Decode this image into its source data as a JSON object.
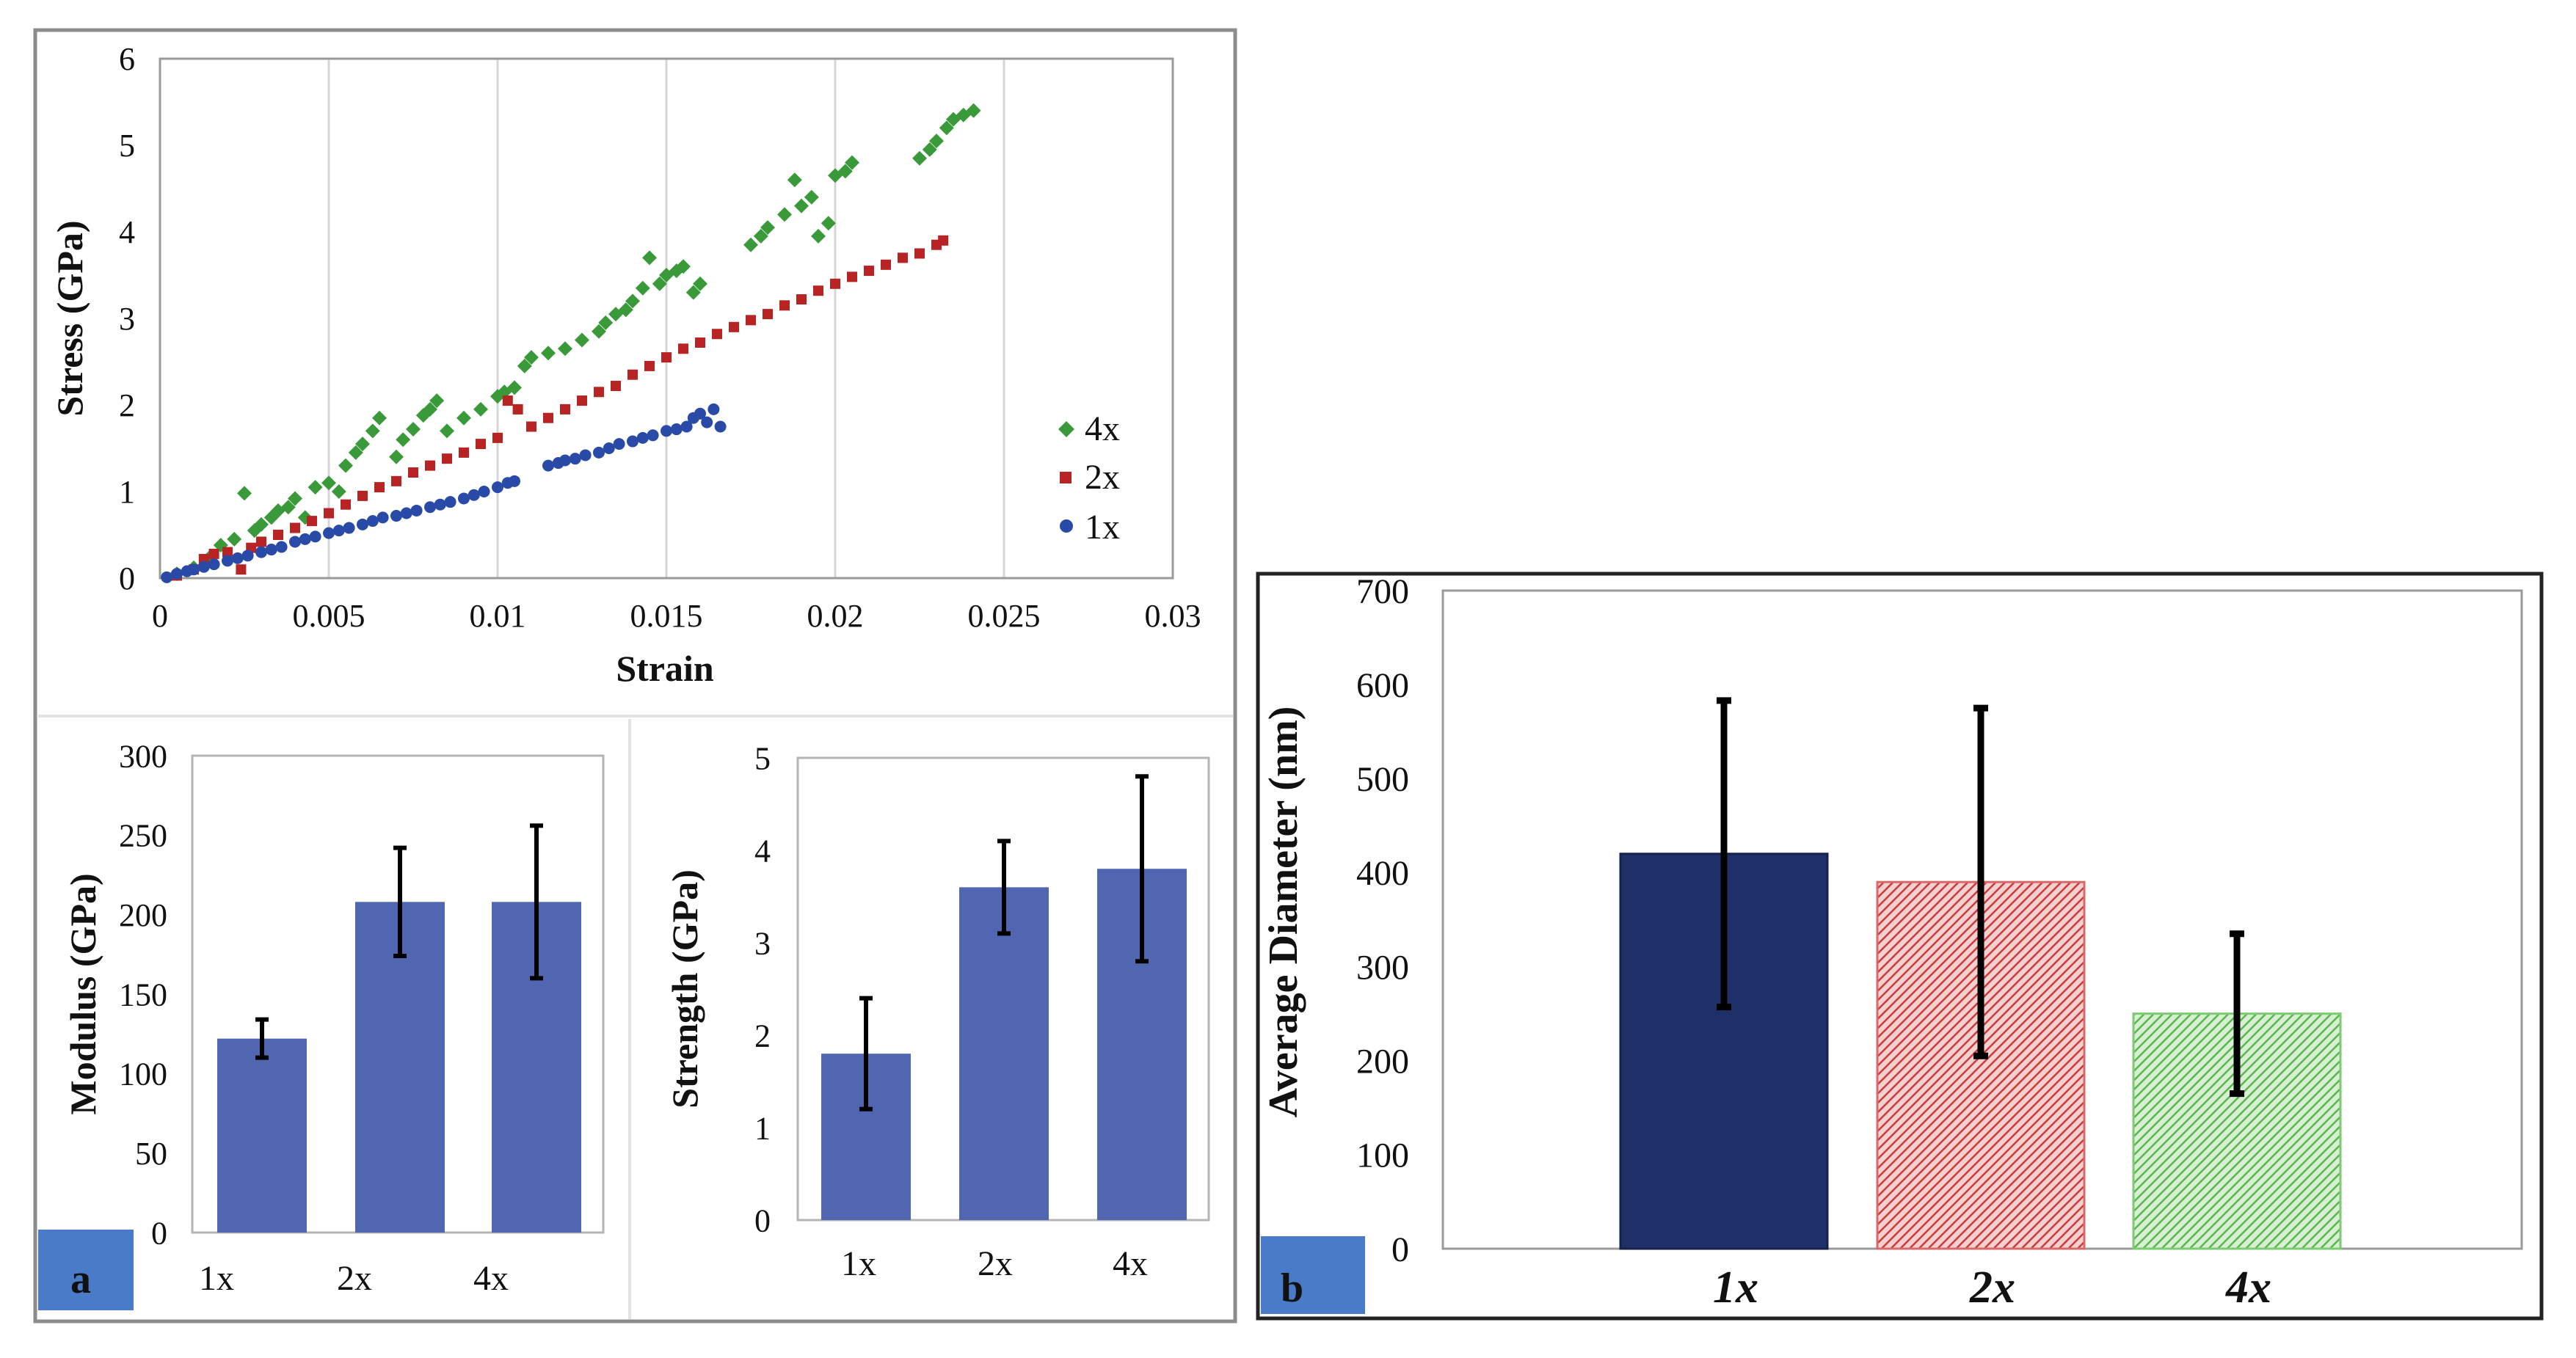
{
  "colors": {
    "green": "#3a9a3a",
    "red": "#b82424",
    "blue": "#2a4aa8",
    "bar_blue": "#5066b0",
    "navy": "#1f3068",
    "hatch_red": "#cc3a3a",
    "hatch_green": "#59b84d",
    "badge": "#4a7bc8",
    "grid": "#d6d6d6"
  },
  "panels": {
    "a": {
      "label": "a"
    },
    "b": {
      "label": "b"
    }
  },
  "chart_data": [
    {
      "id": "stress-strain",
      "type": "scatter",
      "title": "",
      "xlabel": "Strain",
      "ylabel": "Stress (GPa)",
      "xlim": [
        0,
        0.03
      ],
      "ylim": [
        0,
        6
      ],
      "xticks": [
        "0",
        "0.005",
        "0.01",
        "0.015",
        "0.02",
        "0.025",
        "0.03"
      ],
      "yticks": [
        "0",
        "1",
        "2",
        "3",
        "4",
        "5",
        "6"
      ],
      "grid": "vertical",
      "legend": "right",
      "series": [
        {
          "name": "4x",
          "marker": "diamond",
          "color_key": "green",
          "points": [
            [
              0.0005,
              0.05
            ],
            [
              0.001,
              0.12
            ],
            [
              0.0015,
              0.25
            ],
            [
              0.0018,
              0.38
            ],
            [
              0.0022,
              0.45
            ],
            [
              0.0025,
              0.98
            ],
            [
              0.0028,
              0.55
            ],
            [
              0.003,
              0.62
            ],
            [
              0.0033,
              0.7
            ],
            [
              0.0035,
              0.78
            ],
            [
              0.0038,
              0.82
            ],
            [
              0.004,
              0.92
            ],
            [
              0.0043,
              0.7
            ],
            [
              0.0046,
              1.05
            ],
            [
              0.005,
              1.1
            ],
            [
              0.0053,
              1.0
            ],
            [
              0.0055,
              1.3
            ],
            [
              0.0058,
              1.45
            ],
            [
              0.006,
              1.55
            ],
            [
              0.0063,
              1.7
            ],
            [
              0.0065,
              1.85
            ],
            [
              0.007,
              1.4
            ],
            [
              0.0072,
              1.6
            ],
            [
              0.0075,
              1.72
            ],
            [
              0.0078,
              1.88
            ],
            [
              0.008,
              1.95
            ],
            [
              0.0082,
              2.05
            ],
            [
              0.0085,
              1.7
            ],
            [
              0.009,
              1.85
            ],
            [
              0.0095,
              1.95
            ],
            [
              0.01,
              2.1
            ],
            [
              0.0102,
              2.15
            ],
            [
              0.0105,
              2.2
            ],
            [
              0.0108,
              2.45
            ],
            [
              0.011,
              2.55
            ],
            [
              0.0115,
              2.6
            ],
            [
              0.012,
              2.65
            ],
            [
              0.0125,
              2.75
            ],
            [
              0.013,
              2.85
            ],
            [
              0.0132,
              2.95
            ],
            [
              0.0135,
              3.05
            ],
            [
              0.0138,
              3.1
            ],
            [
              0.014,
              3.2
            ],
            [
              0.0143,
              3.35
            ],
            [
              0.0145,
              3.7
            ],
            [
              0.0148,
              3.4
            ],
            [
              0.015,
              3.5
            ],
            [
              0.0153,
              3.55
            ],
            [
              0.0155,
              3.6
            ],
            [
              0.0158,
              3.3
            ],
            [
              0.016,
              3.4
            ],
            [
              0.0175,
              3.85
            ],
            [
              0.0178,
              3.95
            ],
            [
              0.018,
              4.05
            ],
            [
              0.0185,
              4.2
            ],
            [
              0.0188,
              4.6
            ],
            [
              0.019,
              4.3
            ],
            [
              0.0193,
              4.4
            ],
            [
              0.0195,
              3.95
            ],
            [
              0.0198,
              4.1
            ],
            [
              0.02,
              4.65
            ],
            [
              0.0203,
              4.7
            ],
            [
              0.0205,
              4.8
            ],
            [
              0.0225,
              4.85
            ],
            [
              0.0228,
              4.95
            ],
            [
              0.023,
              5.05
            ],
            [
              0.0233,
              5.2
            ],
            [
              0.0235,
              5.3
            ],
            [
              0.0238,
              5.35
            ],
            [
              0.0241,
              5.4
            ]
          ]
        },
        {
          "name": "2x",
          "marker": "square",
          "color_key": "red",
          "points": [
            [
              0.0005,
              0.03
            ],
            [
              0.001,
              0.1
            ],
            [
              0.0013,
              0.22
            ],
            [
              0.0016,
              0.28
            ],
            [
              0.002,
              0.3
            ],
            [
              0.0024,
              0.1
            ],
            [
              0.0027,
              0.35
            ],
            [
              0.003,
              0.42
            ],
            [
              0.0035,
              0.5
            ],
            [
              0.004,
              0.58
            ],
            [
              0.0045,
              0.66
            ],
            [
              0.005,
              0.75
            ],
            [
              0.0055,
              0.85
            ],
            [
              0.006,
              0.95
            ],
            [
              0.0065,
              1.05
            ],
            [
              0.007,
              1.12
            ],
            [
              0.0075,
              1.22
            ],
            [
              0.008,
              1.3
            ],
            [
              0.0085,
              1.38
            ],
            [
              0.009,
              1.45
            ],
            [
              0.0095,
              1.55
            ],
            [
              0.01,
              1.62
            ],
            [
              0.0103,
              2.05
            ],
            [
              0.0106,
              1.95
            ],
            [
              0.011,
              1.75
            ],
            [
              0.0115,
              1.85
            ],
            [
              0.012,
              1.95
            ],
            [
              0.0125,
              2.05
            ],
            [
              0.013,
              2.15
            ],
            [
              0.0135,
              2.22
            ],
            [
              0.014,
              2.35
            ],
            [
              0.0145,
              2.45
            ],
            [
              0.015,
              2.55
            ],
            [
              0.0155,
              2.65
            ],
            [
              0.016,
              2.72
            ],
            [
              0.0165,
              2.82
            ],
            [
              0.017,
              2.9
            ],
            [
              0.0175,
              2.98
            ],
            [
              0.018,
              3.05
            ],
            [
              0.0185,
              3.15
            ],
            [
              0.019,
              3.22
            ],
            [
              0.0195,
              3.32
            ],
            [
              0.02,
              3.4
            ],
            [
              0.0205,
              3.48
            ],
            [
              0.021,
              3.55
            ],
            [
              0.0215,
              3.62
            ],
            [
              0.022,
              3.7
            ],
            [
              0.0225,
              3.75
            ],
            [
              0.023,
              3.85
            ],
            [
              0.0232,
              3.9
            ]
          ]
        },
        {
          "name": "1x",
          "marker": "circle",
          "color_key": "blue",
          "points": [
            [
              0.0002,
              0.01
            ],
            [
              0.0005,
              0.05
            ],
            [
              0.0008,
              0.08
            ],
            [
              0.001,
              0.1
            ],
            [
              0.0013,
              0.13
            ],
            [
              0.0016,
              0.16
            ],
            [
              0.002,
              0.2
            ],
            [
              0.0023,
              0.23
            ],
            [
              0.0026,
              0.26
            ],
            [
              0.003,
              0.3
            ],
            [
              0.0033,
              0.33
            ],
            [
              0.0036,
              0.36
            ],
            [
              0.004,
              0.42
            ],
            [
              0.0043,
              0.45
            ],
            [
              0.0046,
              0.48
            ],
            [
              0.005,
              0.52
            ],
            [
              0.0053,
              0.55
            ],
            [
              0.0056,
              0.58
            ],
            [
              0.006,
              0.62
            ],
            [
              0.0063,
              0.66
            ],
            [
              0.0066,
              0.7
            ],
            [
              0.007,
              0.72
            ],
            [
              0.0073,
              0.75
            ],
            [
              0.0076,
              0.78
            ],
            [
              0.008,
              0.82
            ],
            [
              0.0083,
              0.85
            ],
            [
              0.0086,
              0.88
            ],
            [
              0.009,
              0.92
            ],
            [
              0.0093,
              0.96
            ],
            [
              0.0096,
              1.0
            ],
            [
              0.01,
              1.05
            ],
            [
              0.0103,
              1.1
            ],
            [
              0.0105,
              1.12
            ],
            [
              0.0115,
              1.3
            ],
            [
              0.0118,
              1.33
            ],
            [
              0.012,
              1.36
            ],
            [
              0.0123,
              1.38
            ],
            [
              0.0126,
              1.42
            ],
            [
              0.013,
              1.45
            ],
            [
              0.0133,
              1.5
            ],
            [
              0.0136,
              1.55
            ],
            [
              0.014,
              1.58
            ],
            [
              0.0143,
              1.62
            ],
            [
              0.0146,
              1.65
            ],
            [
              0.015,
              1.7
            ],
            [
              0.0153,
              1.72
            ],
            [
              0.0156,
              1.75
            ],
            [
              0.0158,
              1.85
            ],
            [
              0.016,
              1.9
            ],
            [
              0.0162,
              1.8
            ],
            [
              0.0164,
              1.95
            ],
            [
              0.0166,
              1.75
            ]
          ]
        }
      ]
    },
    {
      "id": "modulus",
      "type": "bar",
      "xlabel": "",
      "ylabel": "Modulus (GPa)",
      "ylim": [
        0,
        300
      ],
      "yticks": [
        "0",
        "50",
        "100",
        "150",
        "200",
        "250",
        "300"
      ],
      "categories": [
        "1x",
        "2x",
        "4x"
      ],
      "values": [
        122,
        208,
        208
      ],
      "errors": [
        12,
        34,
        48
      ],
      "grid": false
    },
    {
      "id": "strength",
      "type": "bar",
      "xlabel": "",
      "ylabel": "Strength (GPa)",
      "ylim": [
        0,
        5
      ],
      "yticks": [
        "0",
        "1",
        "2",
        "3",
        "4",
        "5"
      ],
      "categories": [
        "1x",
        "2x",
        "4x"
      ],
      "values": [
        1.8,
        3.6,
        3.8
      ],
      "errors": [
        0.6,
        0.5,
        1.0
      ],
      "grid": false
    },
    {
      "id": "diameter",
      "type": "bar",
      "xlabel": "",
      "ylabel": "Average Diameter (nm)",
      "ylim": [
        0,
        700
      ],
      "yticks": [
        "0",
        "100",
        "200",
        "300",
        "400",
        "500",
        "600",
        "700"
      ],
      "categories": [
        "1x",
        "2x",
        "4x"
      ],
      "values": [
        420,
        390,
        250
      ],
      "errors": [
        163,
        185,
        85
      ],
      "styles": [
        "solid-navy",
        "hatch-red",
        "hatch-green"
      ],
      "grid": false
    }
  ]
}
